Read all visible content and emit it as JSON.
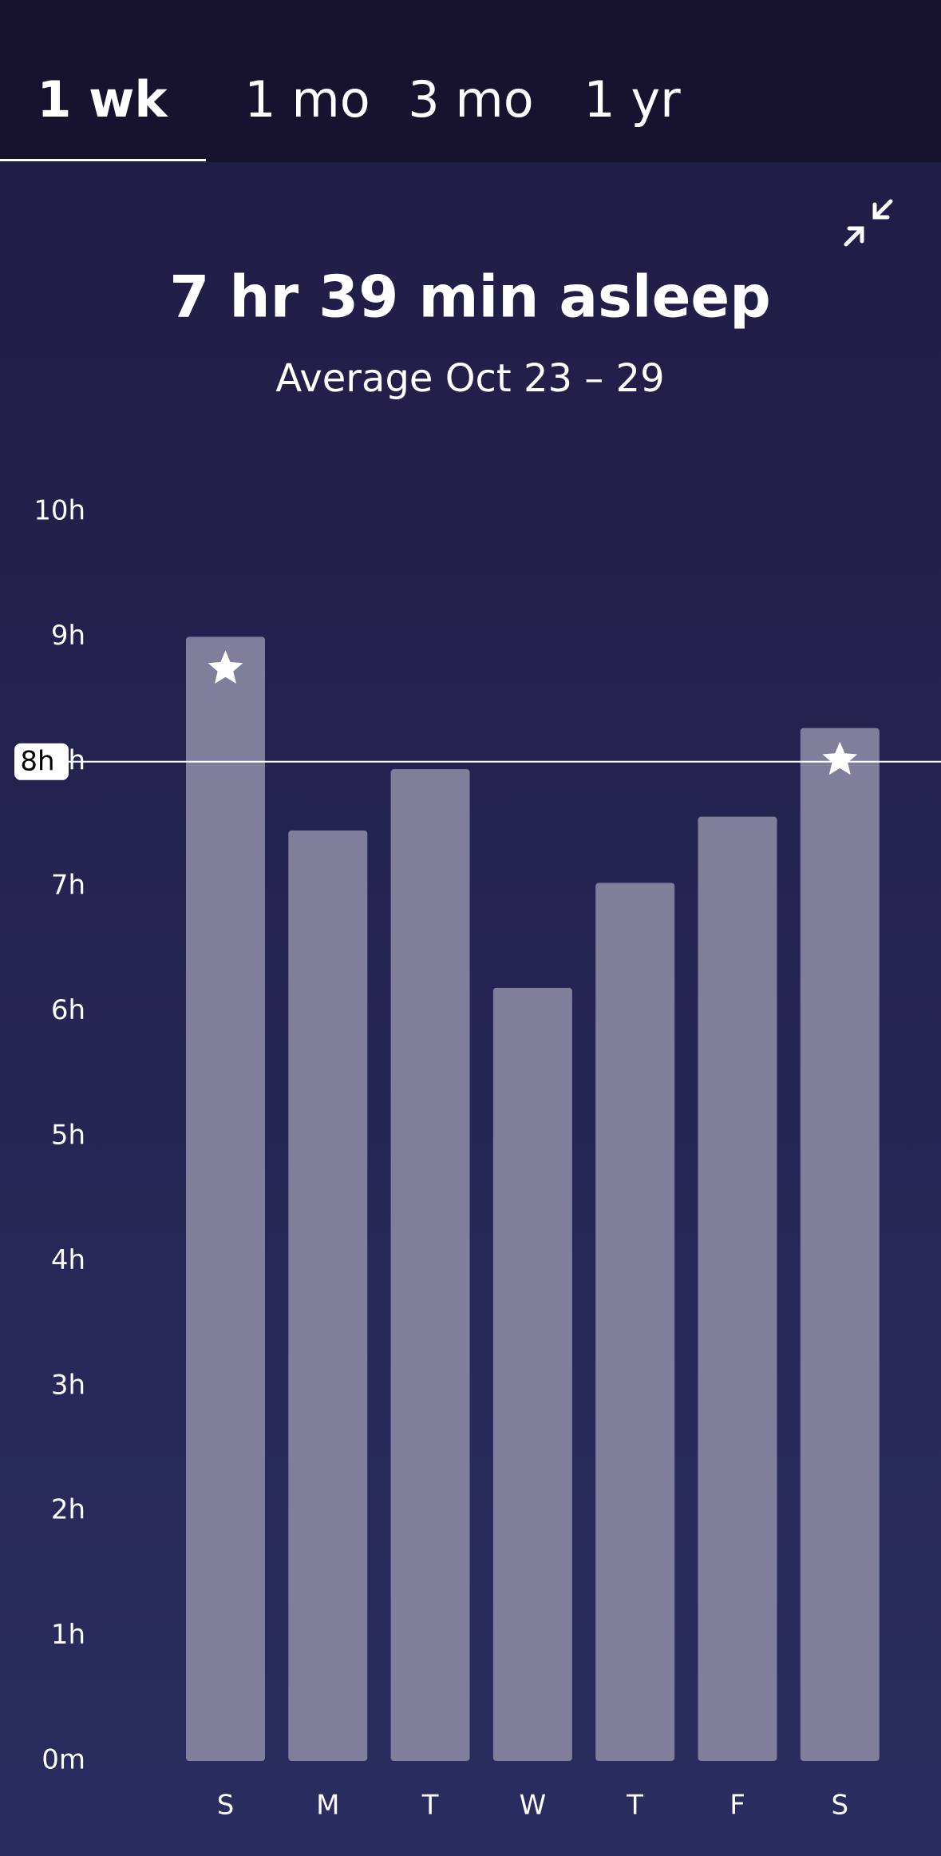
{
  "tabs": [
    "1 wk",
    "1 mo",
    "3 mo",
    "1 yr"
  ],
  "chart_data": {
    "type": "bar",
    "title": "7 hr 39 min asleep",
    "subtitle": "Average Oct 23 – 29",
    "categories": [
      "S",
      "M",
      "T",
      "W",
      "T",
      "F",
      "S"
    ],
    "values": [
      9.0,
      7.45,
      7.94,
      6.19,
      7.03,
      7.56,
      8.27
    ],
    "color": "#7f7f9c",
    "ylim": [
      0,
      10
    ],
    "yticks": [
      {
        "value": 0,
        "label": "0m"
      },
      {
        "value": 1,
        "label": "1h"
      },
      {
        "value": 2,
        "label": "2h"
      },
      {
        "value": 3,
        "label": "3h"
      },
      {
        "value": 4,
        "label": "4h"
      },
      {
        "value": 5,
        "label": "5h"
      },
      {
        "value": 6,
        "label": "6h"
      },
      {
        "value": 7,
        "label": "7h"
      },
      {
        "value": 8,
        "label": "8h"
      },
      {
        "value": 9,
        "label": "9h"
      },
      {
        "value": 10,
        "label": "10h"
      }
    ],
    "goal": {
      "value": 8,
      "label": "8h"
    },
    "grid": false
  }
}
